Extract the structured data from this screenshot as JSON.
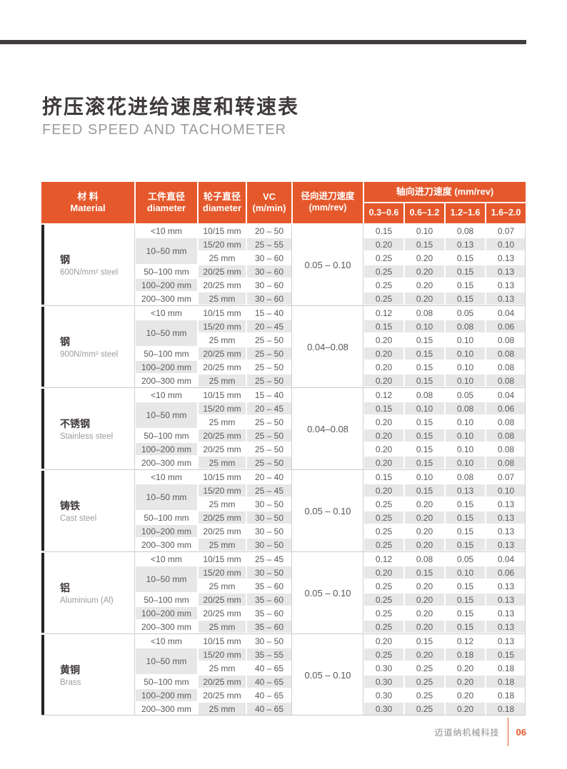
{
  "page": {
    "title_zh": "挤压滚花进给速度和转速表",
    "title_en": "FEED SPEED AND TACHOMETER",
    "footer_company": "迈道纳机械科技",
    "footer_page": "06",
    "accent_color": "#e5582b",
    "row_shade_color": "#e7e7e7",
    "dark_bar_color": "#423e3d"
  },
  "table": {
    "headers": {
      "material_zh": "材 料",
      "material_en": "Material",
      "workpiece_zh": "工件直径",
      "workpiece_en": "diameter",
      "wheel_zh": "轮子直径",
      "wheel_en": "diameter",
      "vc_zh": "VC",
      "vc_en": "(m/min)",
      "radial_zh": "径向进刀速度",
      "radial_en": "(mm/rev)",
      "axial": "轴向进刀速度 (mm/rev)",
      "axial_ranges": [
        "0.3–0.6",
        "0.6–1.2",
        "1.2–1.6",
        "1.6–2.0"
      ]
    },
    "groups": [
      {
        "name_zh": "钢",
        "name_en": "600N/mm² steel",
        "radial": "0.05 – 0.10",
        "rows": [
          {
            "wp": "<10 mm",
            "wp_span": 1,
            "wheel": "10/15 mm",
            "vc": "20 – 50",
            "ax": [
              "0.15",
              "0.10",
              "0.08",
              "0.07"
            ]
          },
          {
            "wp": "10–50 mm",
            "wp_span": 2,
            "wheel": "15/20 mm",
            "vc": "25 – 55",
            "ax": [
              "0.20",
              "0.15",
              "0.13",
              "0.10"
            ]
          },
          {
            "wp": null,
            "wheel": "25 mm",
            "vc": "30 – 60",
            "ax": [
              "0.25",
              "0.20",
              "0.15",
              "0.13"
            ]
          },
          {
            "wp": "50–100 mm",
            "wp_span": 1,
            "wheel": "20/25 mm",
            "vc": "30 – 60",
            "ax": [
              "0.25",
              "0.20",
              "0.15",
              "0.13"
            ]
          },
          {
            "wp": "100–200 mm",
            "wp_span": 1,
            "wheel": "20/25 mm",
            "vc": "30 – 60",
            "ax": [
              "0.25",
              "0.20",
              "0.15",
              "0.13"
            ]
          },
          {
            "wp": "200–300 mm",
            "wp_span": 1,
            "wheel": "25 mm",
            "vc": "30 – 60",
            "ax": [
              "0.25",
              "0.20",
              "0.15",
              "0.13"
            ]
          }
        ]
      },
      {
        "name_zh": "钢",
        "name_en": "900N/mm² steel",
        "radial": "0.04–0.08",
        "rows": [
          {
            "wp": "<10 mm",
            "wp_span": 1,
            "wheel": "10/15 mm",
            "vc": "15 – 40",
            "ax": [
              "0.12",
              "0.08",
              "0.05",
              "0.04"
            ]
          },
          {
            "wp": "10–50 mm",
            "wp_span": 2,
            "wheel": "15/20 mm",
            "vc": "20 – 45",
            "ax": [
              "0.15",
              "0.10",
              "0.08",
              "0.06"
            ]
          },
          {
            "wp": null,
            "wheel": "25 mm",
            "vc": "25 – 50",
            "ax": [
              "0.20",
              "0.15",
              "0.10",
              "0.08"
            ]
          },
          {
            "wp": "50–100 mm",
            "wp_span": 1,
            "wheel": "20/25 mm",
            "vc": "25 – 50",
            "ax": [
              "0.20",
              "0.15",
              "0.10",
              "0.08"
            ]
          },
          {
            "wp": "100–200 mm",
            "wp_span": 1,
            "wheel": "20/25 mm",
            "vc": "25 – 50",
            "ax": [
              "0.20",
              "0.15",
              "0.10",
              "0.08"
            ]
          },
          {
            "wp": "200–300 mm",
            "wp_span": 1,
            "wheel": "25 mm",
            "vc": "25 – 50",
            "ax": [
              "0.20",
              "0.15",
              "0.10",
              "0.08"
            ]
          }
        ]
      },
      {
        "name_zh": "不锈钢",
        "name_en": "Stainless steel",
        "radial": "0.04–0.08",
        "rows": [
          {
            "wp": "<10 mm",
            "wp_span": 1,
            "wheel": "10/15 mm",
            "vc": "15 – 40",
            "ax": [
              "0.12",
              "0.08",
              "0.05",
              "0.04"
            ]
          },
          {
            "wp": "10–50 mm",
            "wp_span": 2,
            "wheel": "15/20 mm",
            "vc": "20 – 45",
            "ax": [
              "0.15",
              "0.10",
              "0.08",
              "0.06"
            ]
          },
          {
            "wp": null,
            "wheel": "25 mm",
            "vc": "25 – 50",
            "ax": [
              "0.20",
              "0.15",
              "0.10",
              "0.08"
            ]
          },
          {
            "wp": "50–100 mm",
            "wp_span": 1,
            "wheel": "20/25 mm",
            "vc": "25 – 50",
            "ax": [
              "0.20",
              "0.15",
              "0.10",
              "0.08"
            ]
          },
          {
            "wp": "100–200 mm",
            "wp_span": 1,
            "wheel": "20/25 mm",
            "vc": "25 – 50",
            "ax": [
              "0.20",
              "0.15",
              "0.10",
              "0.08"
            ]
          },
          {
            "wp": "200–300 mm",
            "wp_span": 1,
            "wheel": "25 mm",
            "vc": "25 – 50",
            "ax": [
              "0.20",
              "0.15",
              "0.10",
              "0.08"
            ]
          }
        ]
      },
      {
        "name_zh": "铸铁",
        "name_en": "Cast steel",
        "radial": "0.05 – 0.10",
        "rows": [
          {
            "wp": "<10 mm",
            "wp_span": 1,
            "wheel": "10/15 mm",
            "vc": "20 – 40",
            "ax": [
              "0.15",
              "0.10",
              "0.08",
              "0.07"
            ]
          },
          {
            "wp": "10–50 mm",
            "wp_span": 2,
            "wheel": "15/20 mm",
            "vc": "25 – 45",
            "ax": [
              "0.20",
              "0.15",
              "0.13",
              "0.10"
            ]
          },
          {
            "wp": null,
            "wheel": "25 mm",
            "vc": "30 – 50",
            "ax": [
              "0.25",
              "0.20",
              "0.15",
              "0.13"
            ]
          },
          {
            "wp": "50–100 mm",
            "wp_span": 1,
            "wheel": "20/25 mm",
            "vc": "30 – 50",
            "ax": [
              "0.25",
              "0.20",
              "0.15",
              "0.13"
            ]
          },
          {
            "wp": "100–200 mm",
            "wp_span": 1,
            "wheel": "20/25 mm",
            "vc": "30 – 50",
            "ax": [
              "0.25",
              "0.20",
              "0.15",
              "0.13"
            ]
          },
          {
            "wp": "200–300 mm",
            "wp_span": 1,
            "wheel": "25 mm",
            "vc": "30 – 50",
            "ax": [
              "0.25",
              "0.20",
              "0.15",
              "0.13"
            ]
          }
        ]
      },
      {
        "name_zh": "铝",
        "name_en": "Aluminium (Al)",
        "radial": "0.05 – 0.10",
        "rows": [
          {
            "wp": "<10 mm",
            "wp_span": 1,
            "wheel": "10/15 mm",
            "vc": "25 – 45",
            "ax": [
              "0.12",
              "0.08",
              "0.05",
              "0.04"
            ]
          },
          {
            "wp": "10–50 mm",
            "wp_span": 2,
            "wheel": "15/20 mm",
            "vc": "30 – 50",
            "ax": [
              "0.20",
              "0.15",
              "0.10",
              "0.06"
            ]
          },
          {
            "wp": null,
            "wheel": "25 mm",
            "vc": "35 – 60",
            "ax": [
              "0.25",
              "0.20",
              "0.15",
              "0.13"
            ]
          },
          {
            "wp": "50–100 mm",
            "wp_span": 1,
            "wheel": "20/25 mm",
            "vc": "35 – 60",
            "ax": [
              "0.25",
              "0.20",
              "0.15",
              "0.13"
            ]
          },
          {
            "wp": "100–200 mm",
            "wp_span": 1,
            "wheel": "20/25 mm",
            "vc": "35 – 60",
            "ax": [
              "0.25",
              "0.20",
              "0.15",
              "0.13"
            ]
          },
          {
            "wp": "200–300 mm",
            "wp_span": 1,
            "wheel": "25 mm",
            "vc": "35 – 60",
            "ax": [
              "0.25",
              "0.20",
              "0.15",
              "0.13"
            ]
          }
        ]
      },
      {
        "name_zh": "黄铜",
        "name_en": "Brass",
        "radial": "0.05 – 0.10",
        "rows": [
          {
            "wp": "<10 mm",
            "wp_span": 1,
            "wheel": "10/15 mm",
            "vc": "30 – 50",
            "ax": [
              "0.20",
              "0.15",
              "0.12",
              "0.13"
            ]
          },
          {
            "wp": "10–50 mm",
            "wp_span": 2,
            "wheel": "15/20 mm",
            "vc": "35 – 55",
            "ax": [
              "0.25",
              "0.20",
              "0.18",
              "0.15"
            ]
          },
          {
            "wp": null,
            "wheel": "25 mm",
            "vc": "40 – 65",
            "ax": [
              "0.30",
              "0.25",
              "0.20",
              "0.18"
            ]
          },
          {
            "wp": "50–100 mm",
            "wp_span": 1,
            "wheel": "20/25 mm",
            "vc": "40 – 65",
            "ax": [
              "0.30",
              "0.25",
              "0.20",
              "0.18"
            ]
          },
          {
            "wp": "100–200 mm",
            "wp_span": 1,
            "wheel": "20/25 mm",
            "vc": "40 – 65",
            "ax": [
              "0.30",
              "0.25",
              "0.20",
              "0.18"
            ]
          },
          {
            "wp": "200–300 mm",
            "wp_span": 1,
            "wheel": "25 mm",
            "vc": "40 – 65",
            "ax": [
              "0.30",
              "0.25",
              "0.20",
              "0.18"
            ]
          }
        ]
      }
    ]
  }
}
